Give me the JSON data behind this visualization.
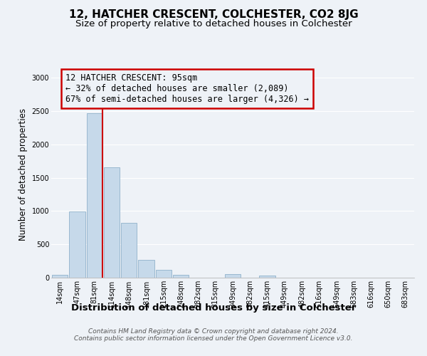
{
  "title": "12, HATCHER CRESCENT, COLCHESTER, CO2 8JG",
  "subtitle": "Size of property relative to detached houses in Colchester",
  "xlabel": "Distribution of detached houses by size in Colchester",
  "ylabel": "Number of detached properties",
  "bar_labels": [
    "14sqm",
    "47sqm",
    "81sqm",
    "114sqm",
    "148sqm",
    "181sqm",
    "215sqm",
    "248sqm",
    "282sqm",
    "315sqm",
    "349sqm",
    "382sqm",
    "415sqm",
    "449sqm",
    "482sqm",
    "516sqm",
    "549sqm",
    "583sqm",
    "616sqm",
    "650sqm",
    "683sqm"
  ],
  "bar_values": [
    40,
    990,
    2470,
    1660,
    820,
    270,
    115,
    40,
    0,
    0,
    50,
    0,
    30,
    0,
    0,
    0,
    0,
    0,
    0,
    0,
    0
  ],
  "bar_color": "#c6d9ea",
  "bar_edgecolor": "#9ab8d0",
  "bar_linewidth": 0.7,
  "vline_color": "#cc0000",
  "vline_linewidth": 1.5,
  "vline_xindex": 2,
  "ylim": [
    0,
    3100
  ],
  "yticks": [
    0,
    500,
    1000,
    1500,
    2000,
    2500,
    3000
  ],
  "annotation_line1": "12 HATCHER CRESCENT: 95sqm",
  "annotation_line2": "← 32% of detached houses are smaller (2,089)",
  "annotation_line3": "67% of semi-detached houses are larger (4,326) →",
  "box_edgecolor": "#cc0000",
  "background_color": "#eef2f7",
  "grid_color": "#ffffff",
  "footer_text": "Contains HM Land Registry data © Crown copyright and database right 2024.\nContains public sector information licensed under the Open Government Licence v3.0.",
  "title_fontsize": 11,
  "subtitle_fontsize": 9.5,
  "xlabel_fontsize": 9.5,
  "ylabel_fontsize": 8.5,
  "tick_fontsize": 7,
  "annotation_fontsize": 8.5,
  "footer_fontsize": 6.5
}
